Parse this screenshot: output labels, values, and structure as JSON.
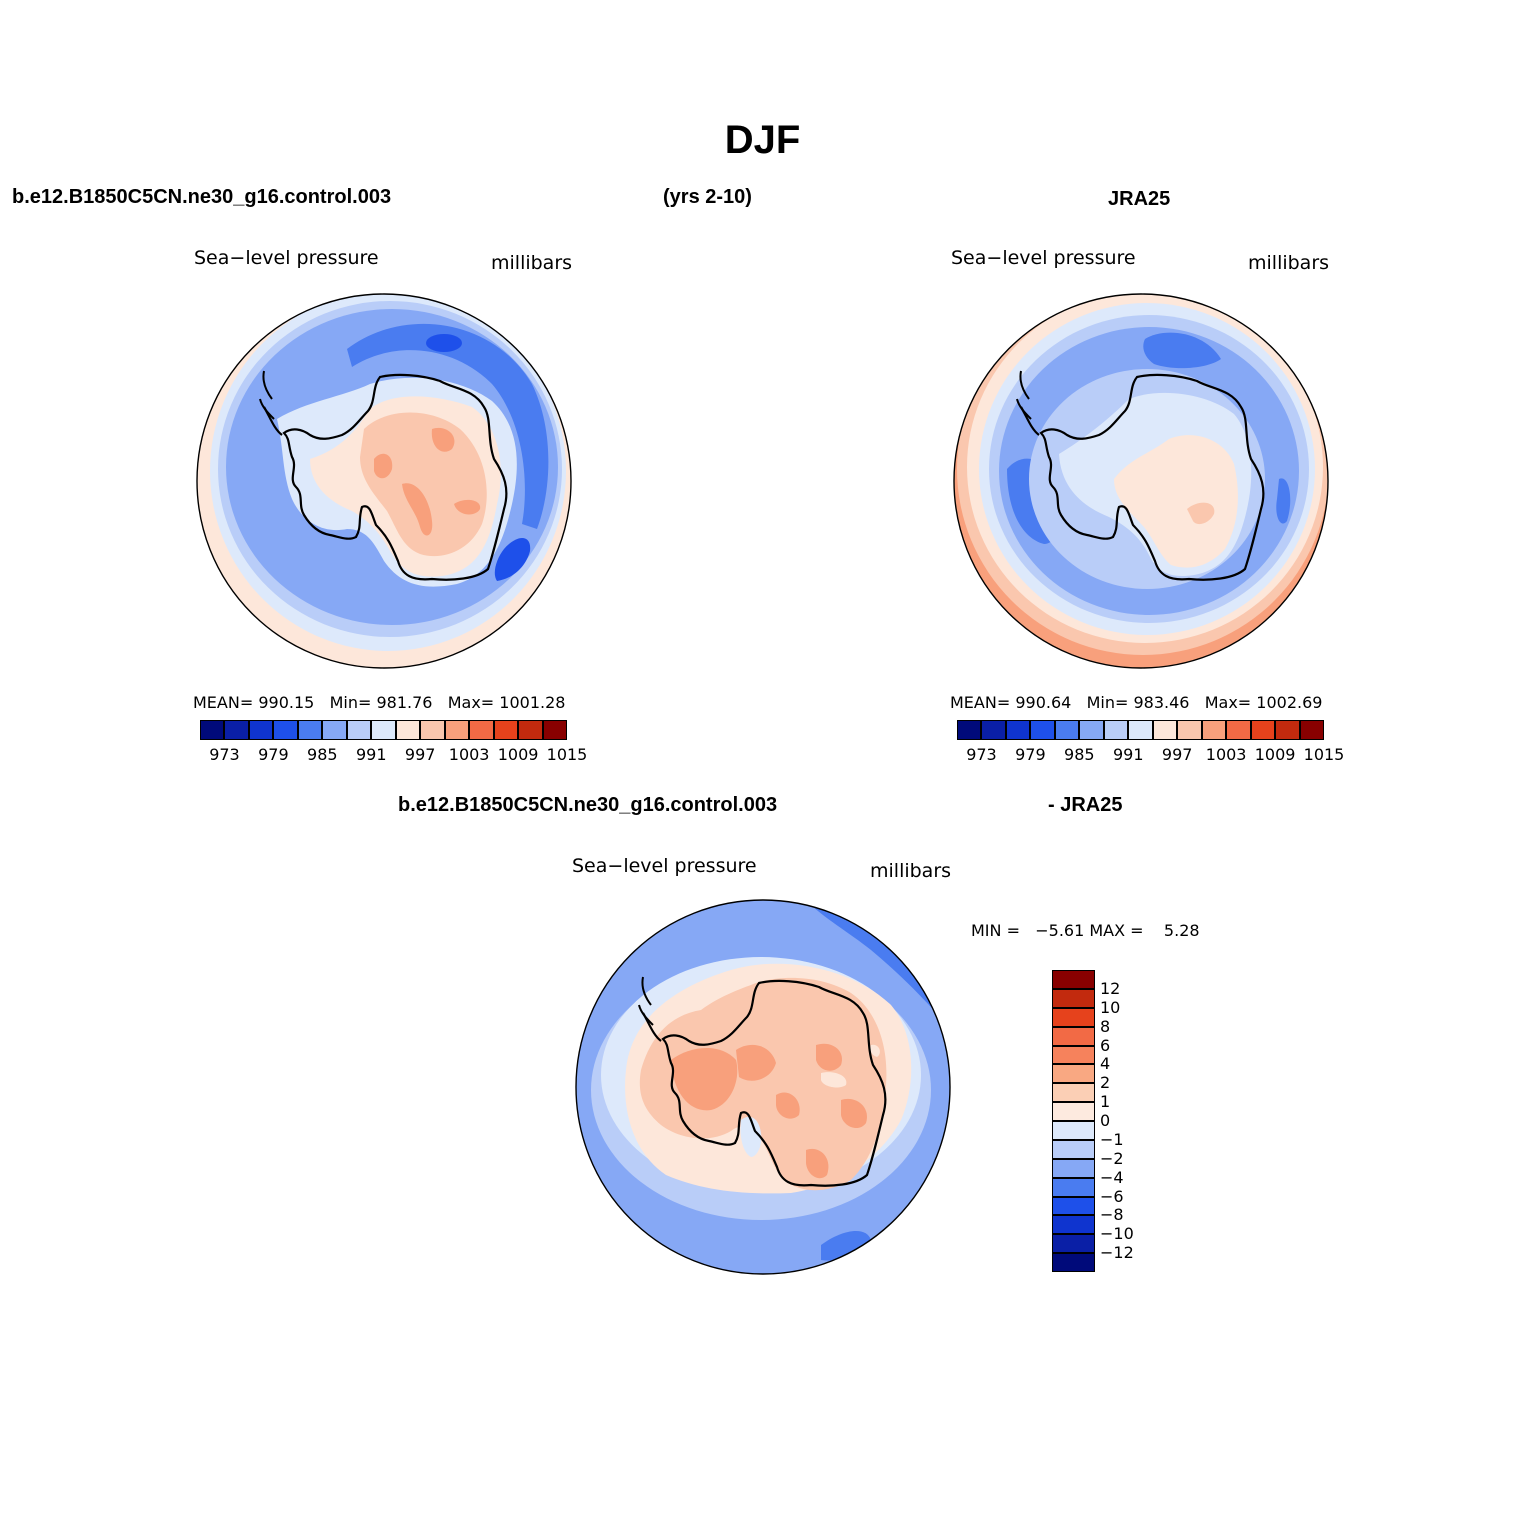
{
  "title": "DJF",
  "header": {
    "case_name": "b.e12.B1850C5CN.ne30_g16.control.003",
    "years": "(yrs 2-10)",
    "obs_name": "JRA25"
  },
  "diff_header": {
    "case_name": "b.e12.B1850C5CN.ne30_g16.control.003",
    "obs_suffix": "- JRA25"
  },
  "panels": {
    "model": {
      "variable": "Sea−level pressure",
      "units": "millibars",
      "stats": {
        "mean_label": "MEAN=",
        "mean": "990.15",
        "min_label": "Min=",
        "min": "981.76",
        "max_label": "Max=",
        "max": "1001.28"
      }
    },
    "obs": {
      "variable": "Sea−level pressure",
      "units": "millibars",
      "stats": {
        "mean_label": "MEAN=",
        "mean": "990.64",
        "min_label": "Min=",
        "min": "983.46",
        "max_label": "Max=",
        "max": "1002.69"
      }
    },
    "diff": {
      "variable": "Sea−level pressure",
      "units": "millibars",
      "stats": {
        "min_label": "MIN =",
        "min": "−5.61",
        "max_label": "MAX =",
        "max": "5.28"
      }
    }
  },
  "colorbars": {
    "abs": {
      "colors": [
        "#000a7a",
        "#0a1fa6",
        "#0f34cf",
        "#1e50ea",
        "#4a7cf0",
        "#86a8f5",
        "#b9cdf8",
        "#dde9fb",
        "#fde7da",
        "#fac7ae",
        "#f8a07c",
        "#f26a45",
        "#e6421c",
        "#c22a0e",
        "#880000"
      ],
      "labels": [
        "973",
        "979",
        "985",
        "991",
        "997",
        "1003",
        "1009",
        "1015"
      ]
    },
    "diff": {
      "colors_top_to_bottom": [
        "#880000",
        "#c22a0e",
        "#e6421c",
        "#f26a45",
        "#f6825c",
        "#f9a882",
        "#fbcfb5",
        "#fdeadf",
        "#dde9fb",
        "#b9cdf8",
        "#86a8f5",
        "#4a7cf0",
        "#1e50ea",
        "#0f34cf",
        "#0a1fa6",
        "#000a7a"
      ],
      "labels_top_to_bottom": [
        "12",
        "10",
        "8",
        "6",
        "4",
        "2",
        "1",
        "0",
        "−1",
        "−2",
        "−4",
        "−6",
        "−8",
        "−10",
        "−12"
      ]
    }
  },
  "palette": {
    "outer_warm": "#fde7da",
    "ring_pale": "#dde9fb",
    "ring_light": "#b9cdf8",
    "ring_mid": "#86a8f5",
    "ring_deep": "#4a7cf0",
    "ring_deeper": "#1e50ea",
    "land_light": "#fde7da",
    "land_mid": "#fac7ae",
    "land_warm": "#f8a07c",
    "land_hot": "#f26a45",
    "coast": "#000000"
  }
}
